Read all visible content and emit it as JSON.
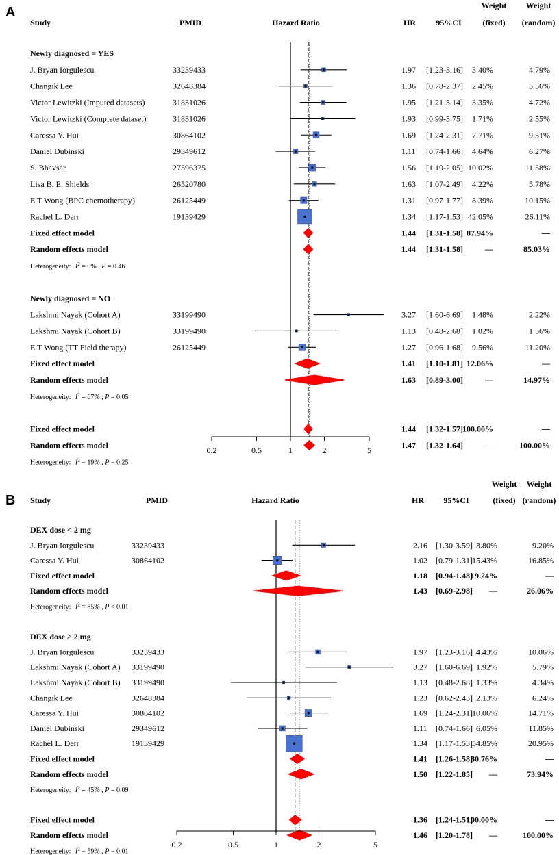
{
  "chart_data": [
    {
      "type": "forest",
      "panel_label": "A",
      "headers": {
        "study": "Study",
        "pmid": "PMID",
        "plot": "Hazard Ratio",
        "hr": "HR",
        "ci": "95%CI",
        "weight_fixed": [
          "Weight",
          "(fixed)"
        ],
        "weight_random": [
          "Weight",
          "(random)"
        ]
      },
      "axis": {
        "scale": "log",
        "xlim": [
          0.2,
          5
        ],
        "ticks": [
          0.2,
          0.5,
          1,
          2,
          5
        ],
        "tick_labels": [
          "0.2",
          "0.5",
          "1",
          "2",
          "5"
        ],
        "null_value": 1,
        "fixed_line": 1.44,
        "random_line": 1.47
      },
      "rows": [
        {
          "kind": "group",
          "label": "Newly diagnosed = YES"
        },
        {
          "kind": "study",
          "study": "J. Bryan Iorgulescu",
          "pmid": "33239433",
          "hr": 1.97,
          "lo": 1.23,
          "hi": 3.16,
          "hr_text": "1.97",
          "ci_text": "[1.23-3.16]",
          "wf": "3.40%",
          "wr": "4.79%",
          "wf_num": 3.4
        },
        {
          "kind": "study",
          "study": "Changik Lee",
          "pmid": "32648384",
          "hr": 1.36,
          "lo": 0.78,
          "hi": 2.37,
          "hr_text": "1.36",
          "ci_text": "[0.78-2.37]",
          "wf": "2.45%",
          "wr": "3.56%",
          "wf_num": 2.45
        },
        {
          "kind": "study",
          "study": "Victor Lewitzki (Imputed datasets)",
          "pmid": "31831026",
          "hr": 1.95,
          "lo": 1.21,
          "hi": 3.14,
          "hr_text": "1.95",
          "ci_text": "[1.21-3.14]",
          "wf": "3.35%",
          "wr": "4.72%",
          "wf_num": 3.35
        },
        {
          "kind": "study",
          "study": "Victor Lewitzki (Complete dataset)",
          "pmid": "31831026",
          "hr": 1.93,
          "lo": 0.99,
          "hi": 3.75,
          "hr_text": "1.93",
          "ci_text": "[0.99-3.75]",
          "wf": "1.71%",
          "wr": "2.55%",
          "wf_num": 1.71
        },
        {
          "kind": "study",
          "study": "Caressa Y. Hui",
          "pmid": "30864102",
          "hr": 1.69,
          "lo": 1.24,
          "hi": 2.31,
          "hr_text": "1.69",
          "ci_text": "[1.24-2.31]",
          "wf": "7.71%",
          "wr": "9.51%",
          "wf_num": 7.71
        },
        {
          "kind": "study",
          "study": "Daniel Dubinski",
          "pmid": "29349612",
          "hr": 1.11,
          "lo": 0.74,
          "hi": 1.66,
          "hr_text": "1.11",
          "ci_text": "[0.74-1.66]",
          "wf": "4.64%",
          "wr": "6.27%",
          "wf_num": 4.64
        },
        {
          "kind": "study",
          "study": "S. Bhavsar",
          "pmid": "27396375",
          "hr": 1.56,
          "lo": 1.19,
          "hi": 2.05,
          "hr_text": "1.56",
          "ci_text": "[1.19-2.05]",
          "wf": "10.02%",
          "wr": "11.58%",
          "wf_num": 10.02
        },
        {
          "kind": "study",
          "study": "Lisa B. E. Shields",
          "pmid": "26520780",
          "hr": 1.63,
          "lo": 1.07,
          "hi": 2.49,
          "hr_text": "1.63",
          "ci_text": "[1.07-2.49]",
          "wf": "4.22%",
          "wr": "5.78%",
          "wf_num": 4.22
        },
        {
          "kind": "study",
          "study": "E T Wong (BPC chemotherapy)",
          "pmid": "26125449",
          "hr": 1.31,
          "lo": 0.97,
          "hi": 1.77,
          "hr_text": "1.31",
          "ci_text": "[0.97-1.77]",
          "wf": "8.39%",
          "wr": "10.15%",
          "wf_num": 8.39
        },
        {
          "kind": "study",
          "study": "Rachel L. Derr",
          "pmid": "19139429",
          "hr": 1.34,
          "lo": 1.17,
          "hi": 1.53,
          "hr_text": "1.34",
          "ci_text": "[1.17-1.53]",
          "wf": "42.05%",
          "wr": "26.11%",
          "wf_num": 42.05
        },
        {
          "kind": "pooled",
          "label": "Fixed effect model",
          "hr": 1.44,
          "lo": 1.31,
          "hi": 1.58,
          "hr_text": "1.44",
          "ci_text": "[1.31-1.58]",
          "wf": "87.94%",
          "wr": "—"
        },
        {
          "kind": "pooled",
          "label": "Random effects model",
          "hr": 1.44,
          "lo": 1.31,
          "hi": 1.58,
          "hr_text": "1.44",
          "ci_text": "[1.31-1.58]",
          "wf": "—",
          "wr": "85.03%"
        },
        {
          "kind": "het",
          "prefix": "Heterogeneity:",
          "i2": "= 0%",
          "p": "= 0.46"
        },
        {
          "kind": "gap"
        },
        {
          "kind": "group",
          "label": "Newly diagnosed = NO"
        },
        {
          "kind": "study",
          "study": "Lakshmi Nayak (Cohort A)",
          "pmid": "33199490",
          "hr": 3.27,
          "lo": 1.6,
          "hi": 6.69,
          "hr_text": "3.27",
          "ci_text": "[1.60-6.69]",
          "wf": "1.48%",
          "wr": "2.22%",
          "wf_num": 1.48
        },
        {
          "kind": "study",
          "study": "Lakshmi Nayak (Cohort B)",
          "pmid": "33199490",
          "hr": 1.13,
          "lo": 0.48,
          "hi": 2.68,
          "hr_text": "1.13",
          "ci_text": "[0.48-2.68]",
          "wf": "1.02%",
          "wr": "1.56%",
          "wf_num": 1.02
        },
        {
          "kind": "study",
          "study": "E T Wong (TT Field therapy)",
          "pmid": "26125449",
          "hr": 1.27,
          "lo": 0.96,
          "hi": 1.68,
          "hr_text": "1.27",
          "ci_text": "[0.96-1.68]",
          "wf": "9.56%",
          "wr": "11.20%",
          "wf_num": 9.56
        },
        {
          "kind": "pooled",
          "label": "Fixed effect model",
          "hr": 1.41,
          "lo": 1.1,
          "hi": 1.81,
          "hr_text": "1.41",
          "ci_text": "[1.10-1.81]",
          "wf": "12.06%",
          "wr": "—"
        },
        {
          "kind": "pooled",
          "label": "Random effects model",
          "hr": 1.63,
          "lo": 0.89,
          "hi": 3.0,
          "hr_text": "1.63",
          "ci_text": "[0.89-3.00]",
          "wf": "—",
          "wr": "14.97%"
        },
        {
          "kind": "het",
          "prefix": "Heterogeneity:",
          "i2": "= 67%",
          "p": "= 0.05"
        },
        {
          "kind": "gap"
        },
        {
          "kind": "pooled",
          "label": "Fixed effect model",
          "hr": 1.44,
          "lo": 1.32,
          "hi": 1.57,
          "hr_text": "1.44",
          "ci_text": "[1.32-1.57]",
          "wf": "100.00%",
          "wr": "—"
        },
        {
          "kind": "pooled",
          "label": "Random effects model",
          "hr": 1.47,
          "lo": 1.32,
          "hi": 1.64,
          "hr_text": "1.47",
          "ci_text": "[1.32-1.64]",
          "wf": "—",
          "wr": "100.00%"
        },
        {
          "kind": "het",
          "prefix": "Heterogeneity:",
          "i2": "= 19%",
          "p": "= 0.25"
        }
      ]
    },
    {
      "type": "forest",
      "panel_label": "B",
      "headers": {
        "study": "Study",
        "pmid": "PMID",
        "plot": "Hazard Ratio",
        "hr": "HR",
        "ci": "95%CI",
        "weight_fixed": [
          "Weight",
          "(fixed)"
        ],
        "weight_random": [
          "Weight",
          "(random)"
        ]
      },
      "axis": {
        "scale": "log",
        "xlim": [
          0.2,
          5
        ],
        "ticks": [
          0.2,
          0.5,
          1,
          2,
          5
        ],
        "tick_labels": [
          "0.2",
          "0.5",
          "1",
          "2",
          "5"
        ],
        "null_value": 1,
        "fixed_line": 1.36,
        "random_line": 1.46
      },
      "rows": [
        {
          "kind": "group",
          "label": "DEX dose < 2 mg"
        },
        {
          "kind": "study",
          "study": "J. Bryan Iorgulescu",
          "pmid": "33239433",
          "hr": 2.16,
          "lo": 1.3,
          "hi": 3.59,
          "hr_text": "2.16",
          "ci_text": "[1.30-3.59]",
          "wf": "3.80%",
          "wr": "9.20%",
          "wf_num": 3.8
        },
        {
          "kind": "study",
          "study": "Caressa Y. Hui",
          "pmid": "30864102",
          "hr": 1.02,
          "lo": 0.79,
          "hi": 1.31,
          "hr_text": "1.02",
          "ci_text": "[0.79-1.31]",
          "wf": "15.43%",
          "wr": "16.85%",
          "wf_num": 15.43
        },
        {
          "kind": "pooled",
          "label": "Fixed effect model",
          "hr": 1.18,
          "lo": 0.94,
          "hi": 1.48,
          "hr_text": "1.18",
          "ci_text": "[0.94-1.48]",
          "wf": "19.24%",
          "wr": "—"
        },
        {
          "kind": "pooled",
          "label": "Random effects model",
          "hr": 1.43,
          "lo": 0.69,
          "hi": 2.98,
          "hr_text": "1.43",
          "ci_text": "[0.69-2.98]",
          "wf": "—",
          "wr": "26.06%"
        },
        {
          "kind": "het",
          "prefix": "Heterogeneity:",
          "i2": "= 85%",
          "p": "< 0.01"
        },
        {
          "kind": "gap"
        },
        {
          "kind": "group",
          "label": "DEX dose ≥ 2 mg"
        },
        {
          "kind": "study",
          "study": "J. Bryan Iorgulescu",
          "pmid": "33239433",
          "hr": 1.97,
          "lo": 1.23,
          "hi": 3.16,
          "hr_text": "1.97",
          "ci_text": "[1.23-3.16]",
          "wf": "4.43%",
          "wr": "10.06%",
          "wf_num": 4.43
        },
        {
          "kind": "study",
          "study": "Lakshmi Nayak (Cohort A)",
          "pmid": "33199490",
          "hr": 3.27,
          "lo": 1.6,
          "hi": 6.69,
          "hr_text": "3.27",
          "ci_text": "[1.60-6.69]",
          "wf": "1.92%",
          "wr": "5.79%",
          "wf_num": 1.92
        },
        {
          "kind": "study",
          "study": "Lakshmi Nayak (Cohort B)",
          "pmid": "33199490",
          "hr": 1.13,
          "lo": 0.48,
          "hi": 2.68,
          "hr_text": "1.13",
          "ci_text": "[0.48-2.68]",
          "wf": "1.33%",
          "wr": "4.34%",
          "wf_num": 1.33
        },
        {
          "kind": "study",
          "study": "Changik Lee",
          "pmid": "32648384",
          "hr": 1.23,
          "lo": 0.62,
          "hi": 2.43,
          "hr_text": "1.23",
          "ci_text": "[0.62-2.43]",
          "wf": "2.13%",
          "wr": "6.24%",
          "wf_num": 2.13
        },
        {
          "kind": "study",
          "study": "Caressa Y. Hui",
          "pmid": "30864102",
          "hr": 1.69,
          "lo": 1.24,
          "hi": 2.31,
          "hr_text": "1.69",
          "ci_text": "[1.24-2.31]",
          "wf": "10.06%",
          "wr": "14.71%",
          "wf_num": 10.06
        },
        {
          "kind": "study",
          "study": "Daniel Dubinski",
          "pmid": "29349612",
          "hr": 1.11,
          "lo": 0.74,
          "hi": 1.66,
          "hr_text": "1.11",
          "ci_text": "[0.74-1.66]",
          "wf": "6.05%",
          "wr": "11.85%",
          "wf_num": 6.05
        },
        {
          "kind": "study",
          "study": "Rachel L. Derr",
          "pmid": "19139429",
          "hr": 1.34,
          "lo": 1.17,
          "hi": 1.53,
          "hr_text": "1.34",
          "ci_text": "[1.17-1.53]",
          "wf": "54.85%",
          "wr": "20.95%",
          "wf_num": 54.85
        },
        {
          "kind": "pooled",
          "label": "Fixed effect model",
          "hr": 1.41,
          "lo": 1.26,
          "hi": 1.58,
          "hr_text": "1.41",
          "ci_text": "[1.26-1.58]",
          "wf": "80.76%",
          "wr": "—"
        },
        {
          "kind": "pooled",
          "label": "Random effects model",
          "hr": 1.5,
          "lo": 1.22,
          "hi": 1.85,
          "hr_text": "1.50",
          "ci_text": "[1.22-1.85]",
          "wf": "—",
          "wr": "73.94%"
        },
        {
          "kind": "het",
          "prefix": "Heterogeneity:",
          "i2": "= 45%",
          "p": "= 0.09"
        },
        {
          "kind": "gap"
        },
        {
          "kind": "pooled",
          "label": "Fixed effect model",
          "hr": 1.36,
          "lo": 1.24,
          "hi": 1.51,
          "hr_text": "1.36",
          "ci_text": "[1.24-1.51]",
          "wf": "100.00%",
          "wr": "—"
        },
        {
          "kind": "pooled",
          "label": "Random effects model",
          "hr": 1.46,
          "lo": 1.2,
          "hi": 1.78,
          "hr_text": "1.46",
          "ci_text": "[1.20-1.78]",
          "wf": "—",
          "wr": "100.00%"
        },
        {
          "kind": "het",
          "prefix": "Heterogeneity:",
          "i2": "= 59%",
          "p": "= 0.01"
        }
      ]
    }
  ],
  "colors": {
    "square": "#4a72d1",
    "square_edge": "#2b4fa8",
    "diamond": "#ff0000",
    "line": "#000000"
  }
}
